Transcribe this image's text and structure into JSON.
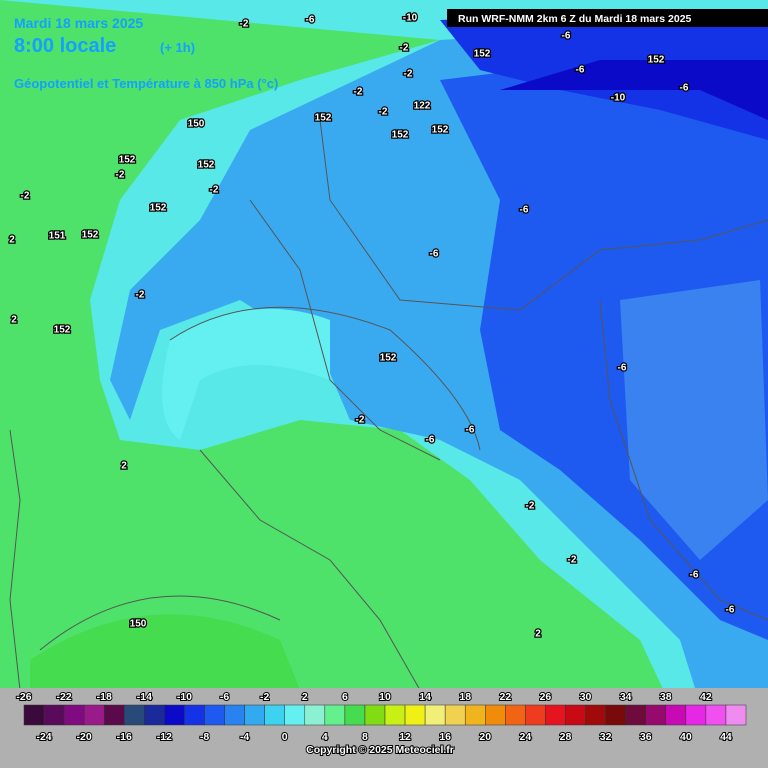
{
  "header": {
    "date": "Mardi 18 mars 2025",
    "time": "8:00 locale",
    "offset": "(+ 1h)",
    "field": "Géopotentiel et Température à 850 hPa (°c)",
    "run": "Run WRF-NMM 2km 6 Z du Mardi 18 mars 2025"
  },
  "contour_labels": [
    -2,
    -6,
    -10,
    -2,
    -2,
    152,
    -2,
    122,
    152,
    -6,
    -6,
    -10,
    -6,
    152,
    -2,
    150,
    152,
    152,
    -2,
    -2,
    152,
    152,
    151,
    152,
    -2,
    152,
    -2,
    152,
    -6,
    -6,
    -6,
    -2,
    -2,
    -6,
    -6,
    -6,
    -6,
    2,
    2,
    2,
    150,
    -2,
    152,
    2
  ],
  "scale": {
    "top_labels": [
      -26,
      -22,
      -18,
      -14,
      -10,
      -6,
      -2,
      2,
      6,
      10,
      14,
      18,
      22,
      26,
      30,
      34,
      38,
      42
    ],
    "bottom_labels": [
      -24,
      -20,
      -16,
      -12,
      -8,
      -4,
      0,
      4,
      8,
      12,
      16,
      20,
      24,
      28,
      32,
      36,
      40,
      44
    ],
    "colors": [
      "#3a0a3a",
      "#5a0a5a",
      "#800a80",
      "#9a1a8a",
      "#5a0a4a",
      "#284a78",
      "#1a2a9a",
      "#0a0ac8",
      "#1432e6",
      "#1e5af0",
      "#2882f0",
      "#32aaf0",
      "#3cd2f0",
      "#64f0f0",
      "#8cf0d2",
      "#64f08c",
      "#46dc50",
      "#82dc14",
      "#c8f014",
      "#f0f014",
      "#f0f078",
      "#f0d250",
      "#f0b41e",
      "#f08c0a",
      "#f06414",
      "#f03c1e",
      "#e6141e",
      "#c80a14",
      "#a00a0a",
      "#780a0a",
      "#6e0a3c",
      "#960a6e",
      "#c80ab4",
      "#e628e6",
      "#f050f0",
      "#f08cf0"
    ]
  },
  "copyright": "Copyright © 2025 Meteociel.fr"
}
